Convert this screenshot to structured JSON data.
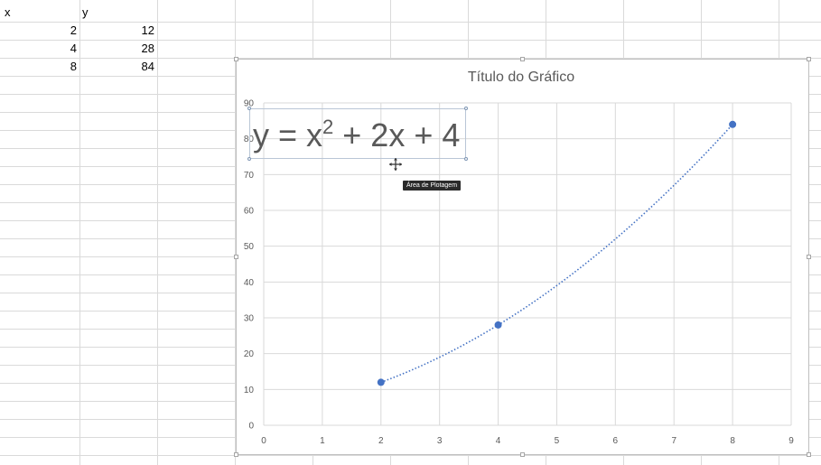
{
  "sheet": {
    "header_x": "x",
    "header_y": "y",
    "rows": [
      {
        "x": "2",
        "y": "12"
      },
      {
        "x": "4",
        "y": "28"
      },
      {
        "x": "8",
        "y": "84"
      }
    ]
  },
  "chart_ui": {
    "equation_lhs": "y = x",
    "equation_exp": "2",
    "equation_rhs": " + 2x + 4",
    "tooltip": "Área de Plotagem"
  },
  "colors": {
    "series": "#4472c4",
    "gridline": "#d9d9d9",
    "text": "#595959"
  },
  "chart_data": {
    "type": "scatter",
    "title": "Título do Gráfico",
    "x": [
      2,
      4,
      8
    ],
    "y": [
      12,
      28,
      84
    ],
    "xlim": [
      0,
      9
    ],
    "ylim": [
      0,
      90
    ],
    "x_ticks": [
      0,
      1,
      2,
      3,
      4,
      5,
      6,
      7,
      8,
      9
    ],
    "y_ticks": [
      0,
      10,
      20,
      30,
      40,
      50,
      60,
      70,
      80,
      90
    ],
    "grid": true,
    "trendline": {
      "type": "polynomial",
      "order": 2,
      "coefficients": [
        1,
        2,
        4
      ],
      "equation": "y = x2 + 2x + 4"
    }
  }
}
